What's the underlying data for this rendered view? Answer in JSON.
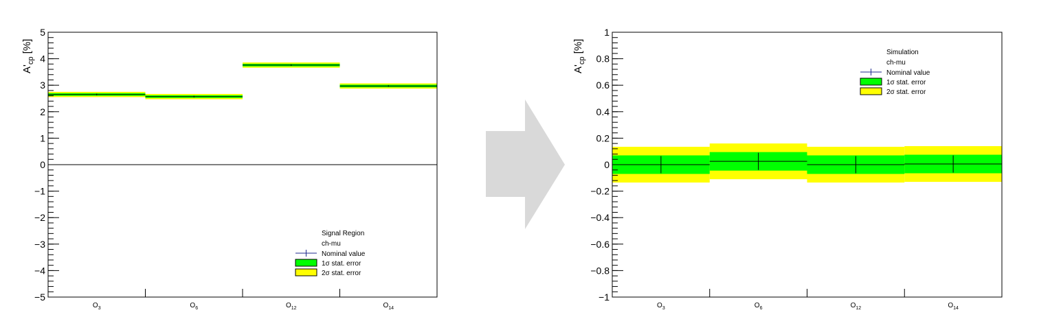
{
  "colors": {
    "one_sigma": "#00ff00",
    "two_sigma": "#ffff00",
    "nominal_marker": "#000000",
    "legend_nominal_line": "#1f2a8f",
    "arrow": "#d9d9d9"
  },
  "arrow_icon": "right-arrow-icon",
  "chart_data": [
    {
      "type": "bar",
      "ylabel_main": "A'",
      "ylabel_sub": "cp",
      "ylabel_unit": "[%]",
      "ylim": [
        -5,
        5
      ],
      "y_major_ticks": [
        -5,
        -4,
        -3,
        -2,
        -1,
        0,
        1,
        2,
        3,
        4,
        5
      ],
      "y_tick_labels": [
        "−5",
        "−4",
        "−3",
        "−2",
        "−1",
        "0",
        "1",
        "2",
        "3",
        "4",
        "5"
      ],
      "y_minor_step": 0.2,
      "zero_line": true,
      "categories": [
        {
          "main": "O",
          "sub": "3"
        },
        {
          "main": "O",
          "sub": "6"
        },
        {
          "main": "O",
          "sub": "12"
        },
        {
          "main": "O",
          "sub": "14"
        }
      ],
      "series": [
        {
          "name": "Nominal value",
          "values": [
            2.65,
            2.57,
            3.76,
            2.97
          ],
          "errors": [
            0.03,
            0.03,
            0.03,
            0.03
          ]
        },
        {
          "name": "1σ stat. error",
          "values": [
            0.05,
            0.05,
            0.05,
            0.05
          ]
        },
        {
          "name": "2σ stat. error",
          "values": [
            0.1,
            0.1,
            0.1,
            0.1
          ]
        }
      ],
      "legend": {
        "position": "bottom-right",
        "header_lines": [
          "Signal Region",
          "ch-mu"
        ],
        "entries": [
          "Nominal value",
          "1σ stat. error",
          "2σ stat. error"
        ]
      }
    },
    {
      "type": "bar",
      "ylabel_main": "A'",
      "ylabel_sub": "cp",
      "ylabel_unit": "[%]",
      "ylim": [
        -1,
        1
      ],
      "y_major_ticks": [
        -1,
        -0.8,
        -0.6,
        -0.4,
        -0.2,
        0,
        0.2,
        0.4,
        0.6,
        0.8,
        1
      ],
      "y_tick_labels": [
        "−1",
        "−0.8",
        "−0.6",
        "−0.4",
        "−0.2",
        "0",
        "0.2",
        "0.4",
        "0.6",
        "0.8",
        "1"
      ],
      "y_minor_step": 0.04,
      "zero_line": false,
      "categories": [
        {
          "main": "O",
          "sub": "3"
        },
        {
          "main": "O",
          "sub": "6"
        },
        {
          "main": "O",
          "sub": "12"
        },
        {
          "main": "O",
          "sub": "14"
        }
      ],
      "series": [
        {
          "name": "Nominal value",
          "values": [
            0.0,
            0.025,
            0.0,
            0.005
          ],
          "errors": [
            0.065,
            0.065,
            0.065,
            0.065
          ]
        },
        {
          "name": "1σ stat. error",
          "values": [
            0.07,
            0.07,
            0.07,
            0.07
          ]
        },
        {
          "name": "2σ stat. error",
          "values": [
            0.135,
            0.135,
            0.135,
            0.135
          ]
        }
      ],
      "legend": {
        "position": "top-right",
        "header_lines": [
          "Simulation",
          "ch-mu"
        ],
        "entries": [
          "Nominal value",
          "1σ stat. error",
          "2σ stat. error"
        ]
      }
    }
  ]
}
